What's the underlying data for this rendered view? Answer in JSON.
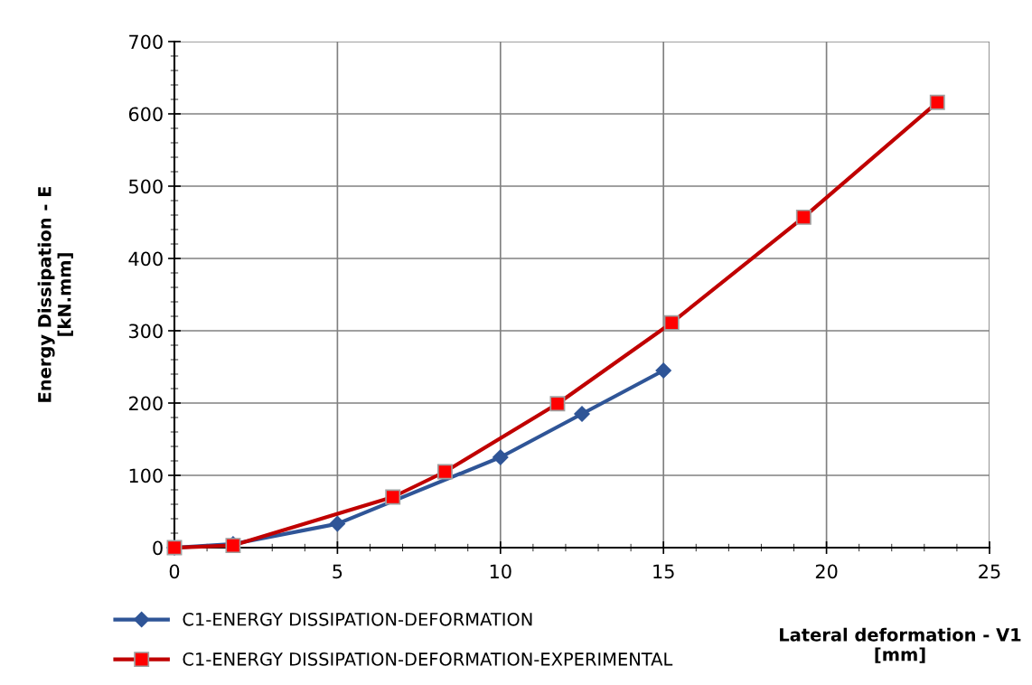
{
  "chart_data": {
    "type": "line",
    "xlabel": "Lateral deformation - V1\n[mm]",
    "ylabel": "Energy Dissipation - E\n[kN.mm]",
    "xlim": [
      0,
      25
    ],
    "xticks": [
      0,
      5,
      10,
      15,
      20,
      25
    ],
    "ylim": [
      0,
      700
    ],
    "yticks": [
      0,
      100,
      200,
      300,
      400,
      500,
      600,
      700
    ],
    "grid": true,
    "legend": "bottom left",
    "series": [
      {
        "name": "C1-ENERGY DISSIPATION-DEFORMATION",
        "color": "#2f5597",
        "marker": "diamond",
        "x": [
          0,
          1.8,
          5,
          10,
          12.5,
          15
        ],
        "values": [
          0,
          5,
          33,
          125,
          185,
          245
        ]
      },
      {
        "name": "C1-ENERGY DISSIPATION-DEFORMATION-EXPERIMENTAL",
        "color": "#c00000",
        "marker": "square",
        "x": [
          0,
          1.8,
          6.7,
          8.3,
          11.75,
          15.25,
          19.3,
          23.4
        ],
        "values": [
          0,
          3,
          70,
          105,
          199,
          311,
          457,
          616
        ]
      }
    ]
  }
}
